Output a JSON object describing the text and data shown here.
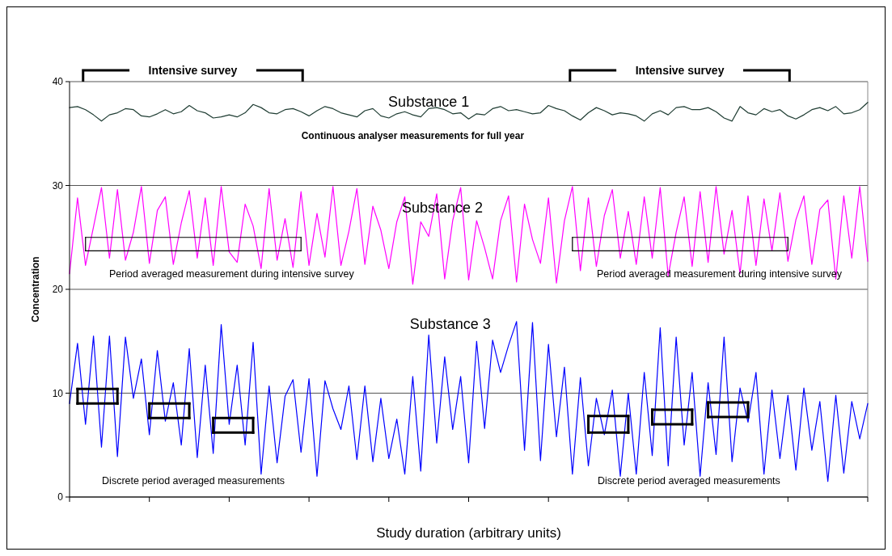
{
  "chart_data": {
    "type": "line",
    "xlabel": "Study duration (arbitrary units)",
    "ylabel": "Concentration",
    "ylim": [
      0,
      40
    ],
    "categories": [
      null,
      null,
      null,
      null,
      null,
      null,
      null,
      null,
      null,
      null,
      null,
      null,
      null,
      null,
      null,
      null,
      null,
      null,
      null,
      null,
      null,
      null,
      null,
      null,
      null,
      null,
      null,
      null,
      null,
      null,
      null,
      null,
      null,
      null,
      null,
      null,
      null,
      null,
      null,
      null,
      null,
      null,
      null,
      null,
      null,
      null,
      null,
      null,
      null,
      null,
      null,
      null,
      null,
      null,
      null,
      null,
      null,
      null,
      null,
      null,
      null,
      null,
      null,
      null,
      null,
      null,
      null,
      null,
      null,
      null,
      null,
      null,
      null,
      null,
      null,
      null,
      null,
      null,
      null,
      null,
      null,
      null,
      null,
      null,
      null,
      null,
      null,
      null,
      null,
      null,
      null,
      null,
      null,
      null,
      null,
      null,
      null,
      null,
      null,
      null,
      null
    ],
    "yticks": [
      0,
      10,
      20,
      30,
      40
    ],
    "grid": "y",
    "series": [
      {
        "color": "#1f3d33",
        "values": [
          37.5,
          37.6,
          37.3,
          36.8,
          36.2,
          36.8,
          37.0,
          37.4,
          37.3,
          36.7,
          36.6,
          36.9,
          37.3,
          36.9,
          37.1,
          37.7,
          37.2,
          37.0,
          36.5,
          36.6,
          36.8,
          36.6,
          37.0,
          37.8,
          37.5,
          37.0,
          36.9,
          37.3,
          37.4,
          37.1,
          36.7,
          37.2,
          37.6,
          37.4,
          37.0,
          36.8,
          36.6,
          37.2,
          37.4,
          36.7,
          36.5,
          36.9,
          37.1,
          36.8,
          36.6,
          37.4,
          37.5,
          37.3,
          36.9,
          37.0,
          36.4,
          36.9,
          36.8,
          37.4,
          37.6,
          37.2,
          37.3,
          37.1,
          36.9,
          37.0,
          37.7,
          37.4,
          37.2,
          36.7,
          36.3,
          37.0,
          37.5,
          37.2,
          36.8,
          37.0,
          36.9,
          36.7,
          36.2,
          36.9,
          37.2,
          36.8,
          37.5,
          37.6,
          37.3,
          37.3,
          37.5,
          37.1,
          36.5,
          36.2,
          37.6,
          37.0,
          36.8,
          37.4,
          37.1,
          37.3,
          36.7,
          36.4,
          36.8,
          37.3,
          37.5,
          37.2,
          37.6,
          36.9,
          37.0,
          37.3,
          38.0
        ]
      },
      {
        "color": "#ff00ff",
        "values": [
          21.5,
          28.8,
          22.3,
          26.0,
          29.8,
          23.0,
          29.6,
          22.8,
          25.5,
          29.9,
          22.5,
          27.6,
          28.9,
          22.4,
          26.4,
          29.5,
          23.0,
          28.8,
          22.3,
          29.9,
          23.6,
          22.6,
          28.2,
          26.1,
          22.0,
          29.7,
          22.8,
          26.8,
          22.1,
          29.4,
          22.3,
          27.3,
          23.1,
          29.9,
          22.3,
          25.6,
          29.7,
          22.4,
          28.0,
          25.7,
          22.0,
          26.5,
          28.9,
          20.5,
          26.5,
          25.1,
          29.2,
          21.0,
          26.6,
          29.8,
          20.9,
          26.6,
          24.0,
          21.0,
          26.6,
          29.0,
          20.7,
          28.2,
          24.8,
          22.5,
          28.8,
          20.6,
          26.6,
          29.9,
          21.8,
          28.8,
          22.2,
          27.1,
          29.6,
          23.0,
          27.5,
          22.4,
          28.9,
          23.0,
          29.8,
          21.3,
          25.5,
          28.9,
          22.2,
          29.4,
          22.6,
          29.9,
          23.4,
          27.6,
          21.5,
          29.0,
          22.3,
          28.7,
          23.7,
          29.3,
          22.7,
          26.7,
          29.0,
          22.4,
          27.7,
          28.6,
          21.0,
          29.0,
          23.0,
          29.9,
          22.7
        ]
      },
      {
        "color": "#0000ff",
        "values": [
          9.0,
          14.8,
          7.0,
          15.5,
          4.8,
          15.5,
          3.9,
          15.4,
          9.5,
          13.3,
          6.0,
          14.1,
          7.3,
          11.0,
          5.0,
          14.3,
          3.8,
          12.7,
          4.2,
          16.6,
          7.0,
          12.7,
          5.0,
          14.9,
          2.2,
          10.7,
          3.3,
          9.7,
          11.3,
          4.3,
          11.4,
          2.0,
          11.2,
          8.5,
          6.5,
          10.7,
          3.6,
          10.7,
          3.4,
          9.5,
          3.7,
          7.5,
          2.2,
          11.6,
          2.5,
          15.6,
          5.2,
          13.5,
          6.5,
          11.6,
          3.3,
          15.0,
          6.6,
          15.1,
          12.0,
          14.6,
          16.9,
          4.5,
          16.8,
          3.5,
          14.7,
          5.8,
          12.5,
          2.2,
          11.5,
          3.0,
          9.5,
          6.0,
          10.3,
          2.0,
          10.0,
          2.2,
          12.0,
          4.0,
          16.3,
          3.0,
          15.4,
          5.0,
          12.0,
          2.0,
          11.0,
          4.1,
          15.4,
          3.4,
          10.5,
          7.2,
          12.0,
          2.2,
          10.3,
          3.7,
          9.8,
          2.6,
          10.5,
          4.5,
          9.2,
          1.5,
          9.8,
          2.3,
          9.2,
          5.6,
          9.0
        ]
      },
      {
        "color": "#000000",
        "values": [
          null,
          null,
          23.7,
          23.7,
          23.7,
          23.7,
          23.7,
          23.7,
          23.7,
          23.7,
          23.7,
          23.7,
          23.7,
          23.7,
          23.7,
          23.7,
          23.7,
          23.7,
          23.7,
          23.7,
          23.7,
          23.7,
          23.7,
          23.7,
          23.7,
          23.7,
          23.7,
          23.7,
          23.7,
          23.7,
          null,
          null,
          null,
          null,
          null,
          null,
          null,
          null,
          null,
          null,
          null,
          null,
          null,
          null,
          null,
          null,
          null,
          null,
          null,
          null,
          null,
          null,
          null,
          null,
          null,
          null,
          null,
          null,
          null,
          null,
          null,
          null,
          null,
          23.7,
          23.7,
          23.7,
          23.7,
          23.7,
          23.7,
          23.7,
          23.7,
          23.7,
          23.7,
          23.7,
          23.7,
          23.7,
          23.7,
          23.7,
          23.7,
          23.7,
          23.7,
          23.7,
          23.7,
          23.7,
          23.7,
          23.7,
          23.7,
          23.7,
          23.7,
          23.7,
          23.7,
          null,
          null,
          null,
          null,
          null,
          null,
          null,
          null,
          null,
          null
        ]
      },
      {
        "color": "#000000",
        "values": [
          null,
          null,
          25.0,
          25.0,
          25.0,
          25.0,
          25.0,
          25.0,
          25.0,
          25.0,
          25.0,
          25.0,
          25.0,
          25.0,
          25.0,
          25.0,
          25.0,
          25.0,
          25.0,
          25.0,
          25.0,
          25.0,
          25.0,
          25.0,
          25.0,
          25.0,
          25.0,
          25.0,
          25.0,
          25.0,
          null,
          null,
          null,
          null,
          null,
          null,
          null,
          null,
          null,
          null,
          null,
          null,
          null,
          null,
          null,
          null,
          null,
          null,
          null,
          null,
          null,
          null,
          null,
          null,
          null,
          null,
          null,
          null,
          null,
          null,
          null,
          null,
          null,
          25.0,
          25.0,
          25.0,
          25.0,
          25.0,
          25.0,
          25.0,
          25.0,
          25.0,
          25.0,
          25.0,
          25.0,
          25.0,
          25.0,
          25.0,
          25.0,
          25.0,
          25.0,
          25.0,
          25.0,
          25.0,
          25.0,
          25.0,
          25.0,
          25.0,
          25.0,
          25.0,
          25.0,
          null,
          null,
          null,
          null,
          null,
          null,
          null,
          null,
          null,
          null
        ]
      },
      {
        "color": "#000000",
        "values": [
          null,
          9.0,
          9.0,
          9.0,
          9.0,
          9.0,
          9.0,
          null,
          null,
          null,
          7.6,
          7.6,
          7.6,
          7.6,
          7.6,
          7.6,
          null,
          null,
          6.2,
          6.2,
          6.2,
          6.2,
          6.2,
          6.2,
          null,
          null,
          null,
          null,
          null,
          null,
          null,
          null,
          null,
          null,
          null,
          null,
          null,
          null,
          null,
          null,
          null,
          null,
          null,
          null,
          null,
          null,
          null,
          null,
          null,
          null,
          null,
          null,
          null,
          null,
          null,
          null,
          null,
          null,
          null,
          null,
          null,
          null,
          null,
          null,
          null,
          6.2,
          6.2,
          6.2,
          6.2,
          6.2,
          6.2,
          null,
          null,
          7.0,
          7.0,
          7.0,
          7.0,
          7.0,
          7.0,
          null,
          7.7,
          7.7,
          7.7,
          7.7,
          7.7,
          7.7,
          null,
          null,
          null,
          null,
          null,
          null,
          null,
          null,
          null,
          null,
          null,
          null,
          null,
          null,
          null
        ]
      },
      {
        "color": "#000000",
        "values": [
          null,
          10.4,
          10.4,
          10.4,
          10.4,
          10.4,
          10.4,
          null,
          null,
          null,
          9.0,
          9.0,
          9.0,
          9.0,
          9.0,
          9.0,
          null,
          null,
          7.6,
          7.6,
          7.6,
          7.6,
          7.6,
          7.6,
          null,
          null,
          null,
          null,
          null,
          null,
          null,
          null,
          null,
          null,
          null,
          null,
          null,
          null,
          null,
          null,
          null,
          null,
          null,
          null,
          null,
          null,
          null,
          null,
          null,
          null,
          null,
          null,
          null,
          null,
          null,
          null,
          null,
          null,
          null,
          null,
          null,
          null,
          null,
          null,
          null,
          7.8,
          7.8,
          7.8,
          7.8,
          7.8,
          7.8,
          null,
          null,
          8.4,
          8.4,
          8.4,
          8.4,
          8.4,
          8.4,
          null,
          9.1,
          9.1,
          9.1,
          9.1,
          9.1,
          9.1,
          null,
          null,
          null,
          null,
          null,
          null,
          null,
          null,
          null,
          null,
          null,
          null,
          null,
          null,
          null
        ]
      }
    ],
    "annotations": [
      "Substance 1",
      "Continuous analyser measurements for full year",
      "Substance 2",
      "Period averaged measurement during intensive survey",
      "Period averaged measurement during intensive survey",
      "Substance 3",
      "Discrete period averaged measurements",
      "Discrete period averaged measurements",
      "Intensive survey",
      "Intensive survey"
    ]
  }
}
